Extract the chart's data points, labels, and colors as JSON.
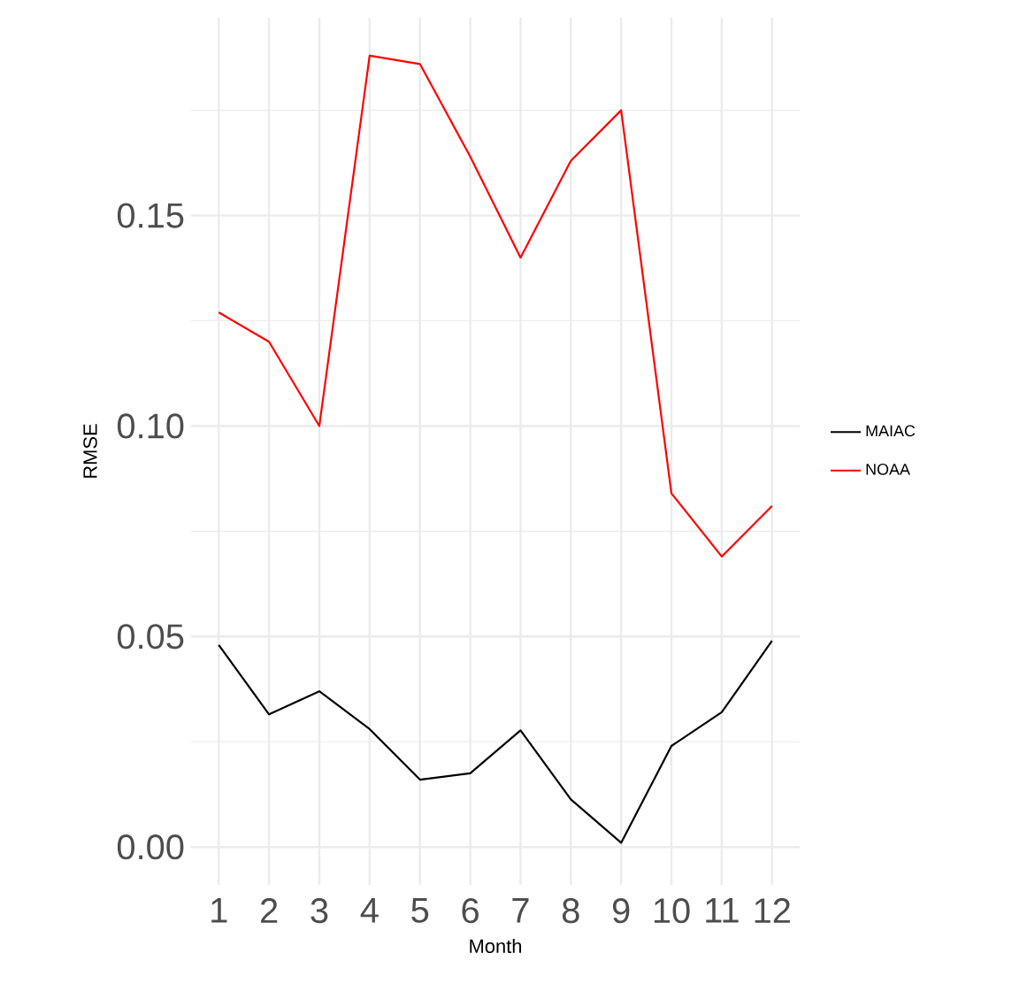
{
  "chart_data": {
    "type": "line",
    "xlabel": "Month",
    "ylabel": "RMSE",
    "x": [
      1,
      2,
      3,
      4,
      5,
      6,
      7,
      8,
      9,
      10,
      11,
      12
    ],
    "series": [
      {
        "name": "MAIAC",
        "color": "#000000",
        "values": [
          0.048,
          0.0315,
          0.037,
          0.028,
          0.016,
          0.0175,
          0.0277,
          0.0113,
          0.001,
          0.024,
          0.032,
          0.049
        ]
      },
      {
        "name": "NOAA",
        "color": "#ff0000",
        "values": [
          0.127,
          0.12,
          0.1,
          0.188,
          0.186,
          0.164,
          0.14,
          0.163,
          0.175,
          0.084,
          0.069,
          0.081
        ]
      }
    ],
    "xlim": [
      0.45,
      12.55
    ],
    "ylim": [
      -0.009,
      0.197
    ],
    "xticks": [
      1,
      2,
      3,
      4,
      5,
      6,
      7,
      8,
      9,
      10,
      11,
      12
    ],
    "yticks": [
      {
        "value": 0,
        "label": "0.00"
      },
      {
        "value": 0.05,
        "label": "0.05"
      },
      {
        "value": 0.1,
        "label": "0.10"
      },
      {
        "value": 0.15,
        "label": "0.15"
      }
    ],
    "grid": true,
    "legend": "right",
    "marker": "none",
    "line_style": "solid"
  }
}
